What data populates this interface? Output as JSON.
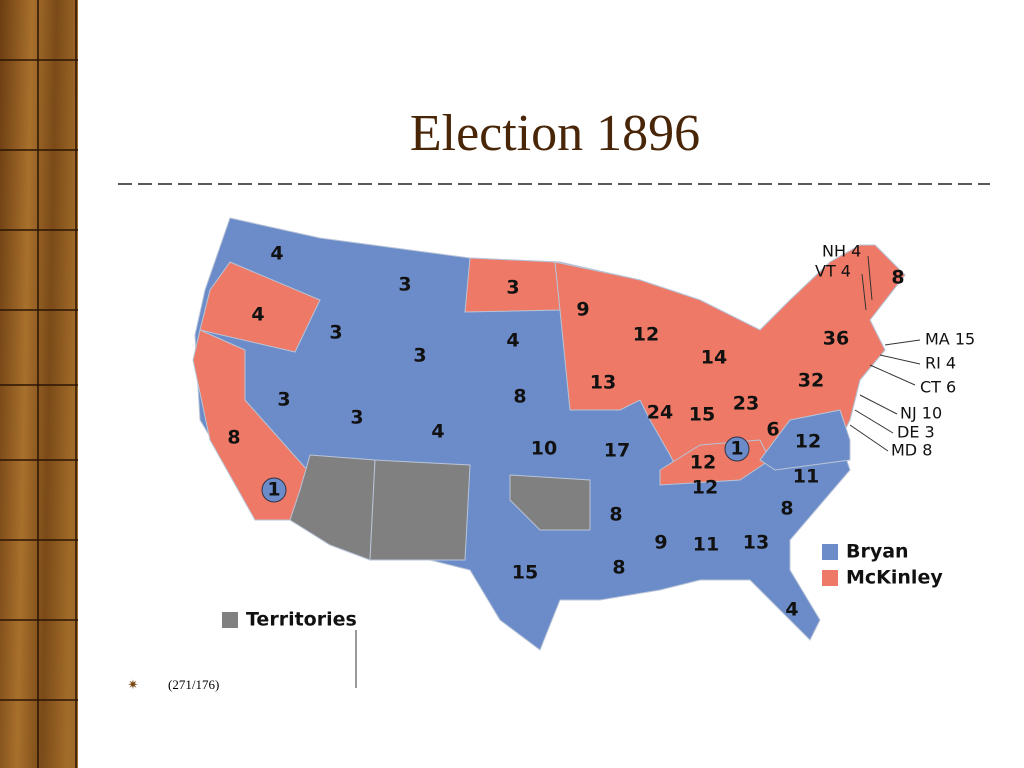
{
  "title": "Election 1896",
  "note": "(271/176)",
  "legend": [
    {
      "label": "Bryan",
      "color": "#6b8cc9"
    },
    {
      "label": "McKinley",
      "color": "#ee7966"
    },
    {
      "label": "Territories",
      "color": "#808080"
    }
  ],
  "states": [
    {
      "label": "4",
      "color": "#6b8cc9"
    },
    {
      "label": "4",
      "color": "#ee7966"
    },
    {
      "label": "8",
      "color": "#ee7966"
    },
    {
      "label": "1",
      "color": "#6b8cc9"
    },
    {
      "label": "3",
      "color": "#6b8cc9"
    },
    {
      "label": "3",
      "color": "#6b8cc9"
    },
    {
      "label": "3",
      "color": "#6b8cc9"
    },
    {
      "label": "3",
      "color": "#6b8cc9"
    },
    {
      "label": "3",
      "color": "#6b8cc9"
    },
    {
      "label": "4",
      "color": "#6b8cc9"
    },
    {
      "label": "3",
      "color": "#ee7966"
    },
    {
      "label": "4",
      "color": "#6b8cc9"
    },
    {
      "label": "8",
      "color": "#6b8cc9"
    },
    {
      "label": "10",
      "color": "#6b8cc9"
    },
    {
      "label": "9",
      "color": "#ee7966"
    },
    {
      "label": "13",
      "color": "#ee7966"
    },
    {
      "label": "17",
      "color": "#6b8cc9"
    },
    {
      "label": "12",
      "color": "#ee7966"
    },
    {
      "label": "24",
      "color": "#ee7966"
    },
    {
      "label": "14",
      "color": "#ee7966"
    },
    {
      "label": "15",
      "color": "#ee7966"
    },
    {
      "label": "23",
      "color": "#ee7966"
    },
    {
      "label": "12",
      "color": "#ee7966"
    },
    {
      "label": "1",
      "color": "#6b8cc9"
    },
    {
      "label": "6",
      "color": "#ee7966"
    },
    {
      "label": "12",
      "color": "#6b8cc9"
    },
    {
      "label": "11",
      "color": "#6b8cc9"
    },
    {
      "label": "12",
      "color": "#6b8cc9"
    },
    {
      "label": "8",
      "color": "#6b8cc9"
    },
    {
      "label": "8",
      "color": "#6b8cc9"
    },
    {
      "label": "15",
      "color": "#6b8cc9"
    },
    {
      "label": "8",
      "color": "#6b8cc9"
    },
    {
      "label": "9",
      "color": "#6b8cc9"
    },
    {
      "label": "11",
      "color": "#6b8cc9"
    },
    {
      "label": "13",
      "color": "#6b8cc9"
    },
    {
      "label": "4",
      "color": "#6b8cc9"
    },
    {
      "label": "36",
      "color": "#ee7966"
    },
    {
      "label": "32",
      "color": "#ee7966"
    },
    {
      "label": "8",
      "color": "#ee7966"
    }
  ],
  "callouts": [
    {
      "label": "NH 4"
    },
    {
      "label": "VT 4"
    },
    {
      "label": "MA 15"
    },
    {
      "label": "RI 4"
    },
    {
      "label": "CT 6"
    },
    {
      "label": "NJ 10"
    },
    {
      "label": "DE 3"
    },
    {
      "label": "MD 8"
    }
  ]
}
